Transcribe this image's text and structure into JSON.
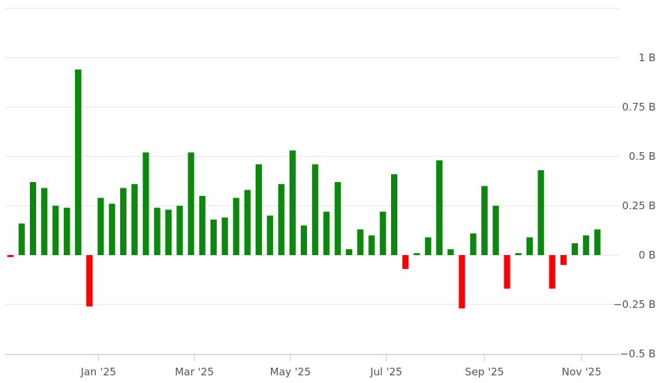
{
  "chart_data": {
    "type": "bar",
    "colors": {
      "positive": "#0a8a0a",
      "negative": "#ff0000",
      "grid": "#e3e6ec",
      "text": "#555555"
    },
    "y_ticks": [
      {
        "value": 1,
        "label": "1 B"
      },
      {
        "value": 0.75,
        "label": "0.75 B"
      },
      {
        "value": 0.5,
        "label": "0.5 B"
      },
      {
        "value": 0.25,
        "label": "0.25 B"
      },
      {
        "value": 0,
        "label": "0 B"
      },
      {
        "value": -0.25,
        "label": "−0.25 B"
      },
      {
        "value": -0.5,
        "label": "−0.5 B"
      }
    ],
    "ylim": [
      -0.5,
      1.25
    ],
    "grid": true,
    "x_ticks": [
      {
        "index": 7.8,
        "label": "Jan '25"
      },
      {
        "index": 16.3,
        "label": "Mar '25"
      },
      {
        "index": 24.8,
        "label": "May '25"
      },
      {
        "index": 33.3,
        "label": "Jul '25"
      },
      {
        "index": 42.0,
        "label": "Sep '25"
      },
      {
        "index": 50.6,
        "label": "Nov '25"
      }
    ],
    "values": [
      -0.01,
      0.16,
      0.37,
      0.34,
      0.25,
      0.24,
      0.94,
      -0.26,
      0.29,
      0.26,
      0.34,
      0.36,
      0.52,
      0.24,
      0.23,
      0.25,
      0.52,
      0.3,
      0.18,
      0.19,
      0.29,
      0.33,
      0.46,
      0.2,
      0.36,
      0.53,
      0.15,
      0.46,
      0.22,
      0.37,
      0.03,
      0.13,
      0.1,
      0.22,
      0.41,
      -0.07,
      0.01,
      0.09,
      0.48,
      0.03,
      -0.27,
      0.11,
      0.35,
      0.25,
      -0.17,
      0.01,
      0.09,
      0.43,
      -0.17,
      -0.05,
      0.06,
      0.1,
      0.13
    ]
  }
}
